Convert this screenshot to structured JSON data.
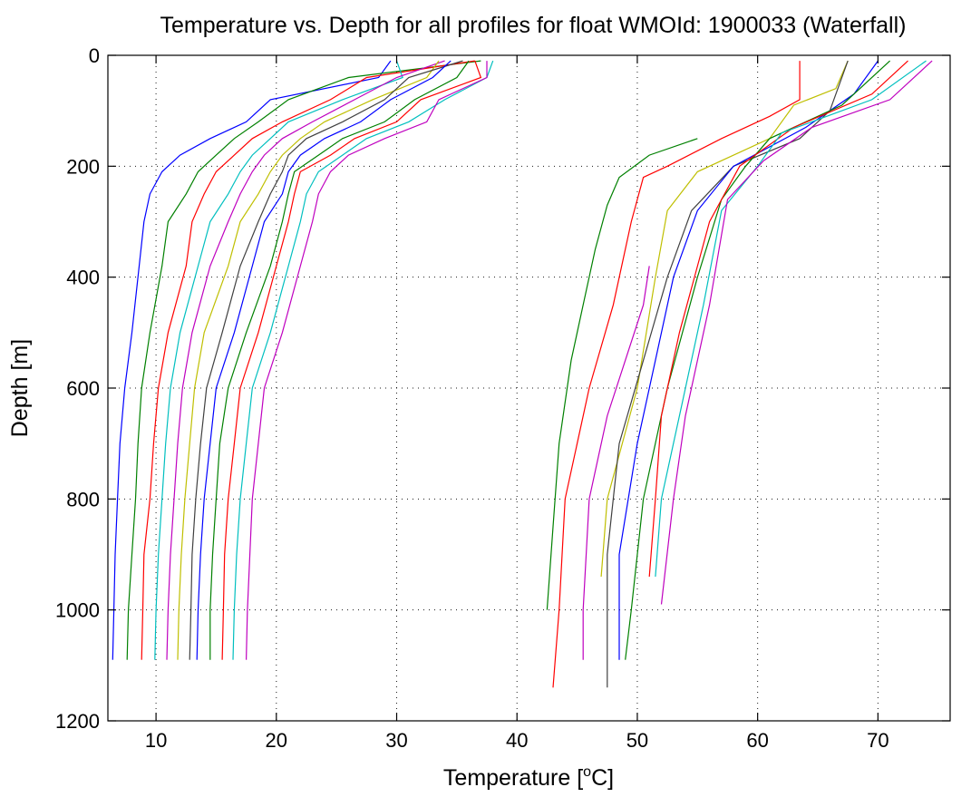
{
  "chart_data": {
    "type": "line",
    "title": "Temperature vs. Depth for all profiles for float WMOId: 1900033 (Waterfall)",
    "xlabel": "Temperature [°C]",
    "xlabel_parts": {
      "main": "Temperature [",
      "sup": "o",
      "unit": "C]"
    },
    "ylabel": "Depth [m]",
    "xlim": [
      6,
      76
    ],
    "ylim": [
      0,
      1200
    ],
    "y_reversed": true,
    "grid": true,
    "xticks": [
      10,
      20,
      30,
      40,
      50,
      60,
      70
    ],
    "yticks": [
      0,
      200,
      400,
      600,
      800,
      1000,
      1200
    ],
    "xtick_labels": [
      "10",
      "20",
      "30",
      "40",
      "50",
      "60",
      "70"
    ],
    "ytick_labels": [
      "0",
      "200",
      "400",
      "600",
      "800",
      "1000",
      "1200"
    ],
    "depth_levels": [
      10,
      40,
      80,
      120,
      150,
      180,
      210,
      250,
      300,
      380,
      500,
      600,
      700,
      800,
      900,
      1000,
      1090
    ],
    "series": [
      {
        "color": "#0000ff",
        "values": [
          29.5,
          28.5,
          19.5,
          17.5,
          14.5,
          12.0,
          10.5,
          9.5,
          9.0,
          8.6,
          8.0,
          7.4,
          7.0,
          6.8,
          6.6,
          6.5,
          6.4
        ]
      },
      {
        "color": "#008000",
        "values": [
          37.0,
          26.0,
          21.0,
          18.5,
          16.5,
          15.0,
          13.5,
          12.5,
          11.0,
          10.5,
          9.5,
          8.8,
          8.5,
          8.3,
          8.0,
          7.7,
          7.6
        ]
      },
      {
        "color": "#ff0000",
        "values": [
          36.5,
          27.5,
          24.5,
          20.5,
          18.0,
          16.5,
          15.0,
          14.0,
          13.0,
          12.5,
          11.0,
          10.2,
          9.8,
          9.5,
          9.0,
          8.9,
          8.8
        ]
      },
      {
        "color": "#00bfbf",
        "values": [
          30.0,
          30.5,
          25.5,
          21.0,
          19.5,
          18.0,
          17.0,
          16.0,
          14.5,
          13.5,
          12.0,
          11.2,
          10.8,
          10.5,
          10.2,
          10.0,
          9.9
        ]
      },
      {
        "color": "#bf00bf",
        "values": [
          34.0,
          30.0,
          26.5,
          23.0,
          20.5,
          19.0,
          18.0,
          17.0,
          16.0,
          14.5,
          13.0,
          12.2,
          11.8,
          11.5,
          11.2,
          11.0,
          10.9
        ]
      },
      {
        "color": "#bfbf00",
        "values": [
          33.5,
          32.5,
          28.0,
          24.0,
          22.0,
          20.5,
          19.5,
          18.5,
          17.0,
          16.0,
          14.0,
          13.2,
          12.8,
          12.4,
          12.1,
          11.9,
          11.8
        ]
      },
      {
        "color": "#404040",
        "values": [
          35.5,
          31.0,
          29.0,
          25.5,
          22.5,
          21.0,
          20.5,
          19.5,
          18.5,
          17.0,
          15.5,
          14.2,
          13.7,
          13.3,
          13.0,
          12.9,
          12.8
        ]
      },
      {
        "color": "#0000ff",
        "values": [
          34.5,
          33.0,
          29.5,
          27.0,
          24.0,
          22.0,
          21.0,
          20.5,
          19.0,
          18.0,
          16.5,
          15.0,
          14.5,
          14.0,
          13.7,
          13.5,
          13.4
        ]
      },
      {
        "color": "#008000",
        "values": [
          36.0,
          35.0,
          31.5,
          29.0,
          25.5,
          23.5,
          21.5,
          21.0,
          20.5,
          19.5,
          17.5,
          16.0,
          15.3,
          15.0,
          14.7,
          14.5,
          14.5
        ]
      },
      {
        "color": "#ff0000",
        "values": [
          36.5,
          37.0,
          32.0,
          30.0,
          26.5,
          24.5,
          22.0,
          21.5,
          21.0,
          20.0,
          18.5,
          17.0,
          16.5,
          16.0,
          15.7,
          15.6,
          15.5
        ]
      },
      {
        "color": "#00bfbf",
        "values": [
          38.0,
          37.5,
          34.0,
          31.0,
          27.5,
          25.5,
          23.5,
          22.5,
          22.0,
          21.0,
          19.5,
          18.0,
          17.5,
          17.0,
          16.7,
          16.5,
          16.4
        ]
      },
      {
        "color": "#bf00bf",
        "values": [
          37.5,
          37.5,
          33.5,
          32.5,
          29.0,
          26.0,
          24.5,
          23.5,
          23.0,
          22.0,
          20.5,
          19.0,
          18.5,
          18.0,
          17.8,
          17.6,
          17.5
        ]
      },
      {
        "depths": [
          150,
          180,
          220,
          270,
          350,
          450,
          550,
          700,
          850,
          1000
        ],
        "color": "#008000",
        "values": [
          55.0,
          51.0,
          48.5,
          47.5,
          46.5,
          45.5,
          44.5,
          43.5,
          43.0,
          42.5
        ]
      },
      {
        "depths": [
          10,
          80,
          110,
          150,
          200,
          220,
          300,
          450,
          600,
          800,
          1000,
          1140
        ],
        "color": "#ff0000",
        "values": [
          63.5,
          63.5,
          61.0,
          57.0,
          52.5,
          50.5,
          49.5,
          48.0,
          46.0,
          44.0,
          43.5,
          43.0
        ]
      },
      {
        "depths": [
          380,
          450,
          550,
          650,
          800,
          1000,
          1090
        ],
        "color": "#bf00bf",
        "values": [
          51.0,
          50.5,
          49.0,
          47.5,
          46.0,
          45.5,
          45.5
        ]
      },
      {
        "depths": [
          10,
          60,
          90,
          150,
          210,
          280,
          400,
          600,
          800,
          940
        ],
        "color": "#bfbf00",
        "values": [
          67.5,
          66.5,
          63.0,
          61.0,
          55.0,
          52.5,
          51.5,
          50.0,
          47.5,
          47.0
        ]
      },
      {
        "depths": [
          10,
          100,
          150,
          200,
          280,
          400,
          550,
          700,
          900,
          1140
        ],
        "color": "#404040",
        "values": [
          67.5,
          66.0,
          63.5,
          58.0,
          54.5,
          52.5,
          50.5,
          48.5,
          47.5,
          47.5
        ]
      },
      {
        "depths": [
          10,
          70,
          130,
          200,
          280,
          400,
          550,
          700,
          900,
          1090
        ],
        "color": "#0000ff",
        "values": [
          70.0,
          68.0,
          64.0,
          58.0,
          55.0,
          53.0,
          51.5,
          50.0,
          48.5,
          48.5
        ]
      },
      {
        "depths": [
          10,
          90,
          150,
          200,
          260,
          400,
          600,
          800,
          1000,
          1090
        ],
        "color": "#008000",
        "values": [
          71.0,
          67.0,
          61.0,
          59.0,
          57.0,
          55.0,
          52.5,
          50.5,
          49.5,
          49.0
        ]
      },
      {
        "depths": [
          10,
          70,
          130,
          200,
          300,
          500,
          650,
          800,
          940
        ],
        "color": "#ff0000",
        "values": [
          72.5,
          69.5,
          63.0,
          58.5,
          56.0,
          53.5,
          52.0,
          51.5,
          51.0
        ]
      },
      {
        "depths": [
          10,
          80,
          140,
          200,
          280,
          450,
          650,
          800,
          940
        ],
        "color": "#00bfbf",
        "values": [
          74.0,
          69.5,
          62.0,
          60.0,
          57.0,
          55.5,
          53.5,
          52.0,
          51.5
        ]
      },
      {
        "depths": [
          10,
          80,
          130,
          190,
          260,
          450,
          650,
          800,
          990
        ],
        "color": "#bf00bf",
        "values": [
          74.5,
          71.0,
          64.5,
          60.5,
          57.5,
          56.0,
          54.0,
          53.0,
          52.0
        ]
      }
    ]
  }
}
